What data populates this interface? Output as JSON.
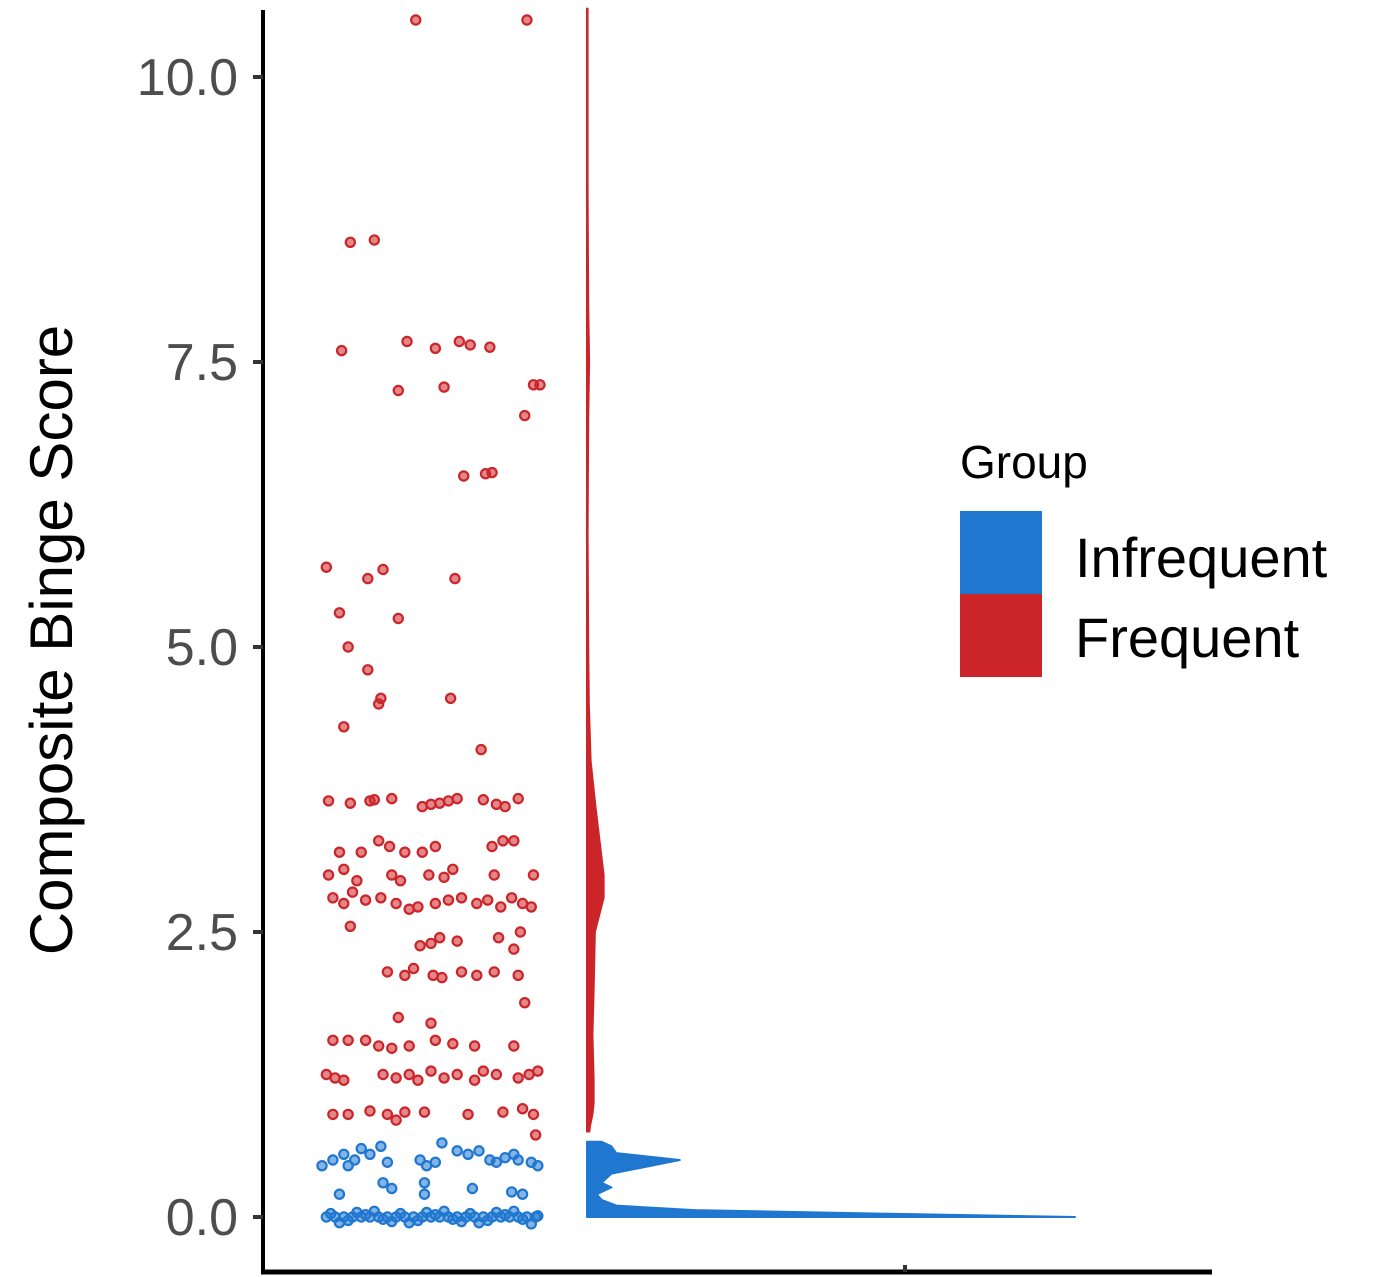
{
  "chart_data": {
    "type": "scatter",
    "subtype": "raincloud (jittered points + half-violin density)",
    "ylabel": "Composite Binge Score",
    "xlabel": "",
    "ylim": [
      -0.4,
      10.6
    ],
    "yticks": [
      0.0,
      2.5,
      5.0,
      7.5,
      10.0
    ],
    "ytick_labels": [
      "0.0",
      "2.5",
      "5.0",
      "7.5",
      "10.0"
    ],
    "grid": false,
    "legend": {
      "title": "Group",
      "position": "right",
      "entries": [
        {
          "label": "Infrequent",
          "color": "#1f77d0"
        },
        {
          "label": "Frequent",
          "color": "#cc2529"
        }
      ]
    },
    "series": [
      {
        "name": "Infrequent",
        "color": "#1f77d0",
        "points": [
          [
            0.02,
            0.0
          ],
          [
            0.06,
            0.0
          ],
          [
            0.1,
            0.0
          ],
          [
            0.14,
            0.0
          ],
          [
            0.18,
            0.0
          ],
          [
            0.22,
            0.0
          ],
          [
            0.26,
            0.0
          ],
          [
            0.3,
            0.0
          ],
          [
            0.34,
            0.0
          ],
          [
            0.38,
            0.0
          ],
          [
            0.42,
            0.0
          ],
          [
            0.46,
            0.0
          ],
          [
            0.5,
            0.0
          ],
          [
            0.54,
            0.0
          ],
          [
            0.58,
            0.0
          ],
          [
            0.62,
            0.0
          ],
          [
            0.66,
            0.0
          ],
          [
            0.7,
            0.0
          ],
          [
            0.74,
            0.0
          ],
          [
            0.78,
            0.0
          ],
          [
            0.82,
            0.0
          ],
          [
            0.86,
            0.0
          ],
          [
            0.9,
            0.0
          ],
          [
            0.94,
            0.0
          ],
          [
            0.98,
            0.0
          ],
          [
            0.04,
            0.03
          ],
          [
            0.12,
            -0.03
          ],
          [
            0.2,
            0.02
          ],
          [
            0.28,
            -0.02
          ],
          [
            0.36,
            0.03
          ],
          [
            0.44,
            -0.03
          ],
          [
            0.52,
            0.02
          ],
          [
            0.6,
            -0.02
          ],
          [
            0.68,
            0.03
          ],
          [
            0.76,
            -0.03
          ],
          [
            0.84,
            0.02
          ],
          [
            0.92,
            -0.02
          ],
          [
            0.08,
            -0.05
          ],
          [
            0.24,
            0.05
          ],
          [
            0.4,
            -0.05
          ],
          [
            0.56,
            0.05
          ],
          [
            0.72,
            -0.05
          ],
          [
            0.88,
            0.05
          ],
          [
            0.96,
            -0.06
          ],
          [
            0.16,
            0.04
          ],
          [
            0.32,
            -0.04
          ],
          [
            0.48,
            0.04
          ],
          [
            0.64,
            -0.04
          ],
          [
            0.8,
            0.04
          ],
          [
            0.99,
            0.01
          ],
          [
            0.0,
            0.45
          ],
          [
            0.05,
            0.5
          ],
          [
            0.1,
            0.55
          ],
          [
            0.12,
            0.45
          ],
          [
            0.15,
            0.5
          ],
          [
            0.18,
            0.6
          ],
          [
            0.22,
            0.55
          ],
          [
            0.27,
            0.62
          ],
          [
            0.3,
            0.48
          ],
          [
            0.45,
            0.5
          ],
          [
            0.48,
            0.45
          ],
          [
            0.52,
            0.48
          ],
          [
            0.55,
            0.65
          ],
          [
            0.62,
            0.58
          ],
          [
            0.67,
            0.55
          ],
          [
            0.72,
            0.58
          ],
          [
            0.77,
            0.5
          ],
          [
            0.8,
            0.48
          ],
          [
            0.84,
            0.52
          ],
          [
            0.88,
            0.55
          ],
          [
            0.9,
            0.5
          ],
          [
            0.96,
            0.48
          ],
          [
            0.99,
            0.45
          ],
          [
            0.08,
            0.2
          ],
          [
            0.28,
            0.3
          ],
          [
            0.32,
            0.25
          ],
          [
            0.47,
            0.3
          ],
          [
            0.47,
            0.2
          ],
          [
            0.69,
            0.25
          ],
          [
            0.87,
            0.22
          ],
          [
            0.92,
            0.2
          ]
        ]
      },
      {
        "name": "Frequent",
        "color": "#cc2529",
        "points": [
          [
            0.43,
            10.5
          ],
          [
            0.94,
            10.5
          ],
          [
            0.13,
            8.55
          ],
          [
            0.24,
            8.57
          ],
          [
            0.09,
            7.6
          ],
          [
            0.35,
            7.25
          ],
          [
            0.39,
            7.68
          ],
          [
            0.52,
            7.62
          ],
          [
            0.56,
            7.28
          ],
          [
            0.63,
            7.68
          ],
          [
            0.68,
            7.65
          ],
          [
            0.77,
            7.63
          ],
          [
            0.93,
            7.03
          ],
          [
            0.97,
            7.3
          ],
          [
            1.0,
            7.3
          ],
          [
            0.65,
            6.5
          ],
          [
            0.75,
            6.52
          ],
          [
            0.78,
            6.53
          ],
          [
            0.02,
            5.7
          ],
          [
            0.21,
            5.6
          ],
          [
            0.28,
            5.68
          ],
          [
            0.35,
            5.25
          ],
          [
            0.61,
            5.6
          ],
          [
            0.08,
            5.3
          ],
          [
            0.12,
            5.0
          ],
          [
            0.21,
            4.8
          ],
          [
            0.26,
            4.5
          ],
          [
            0.27,
            4.55
          ],
          [
            0.59,
            4.55
          ],
          [
            0.1,
            4.3
          ],
          [
            0.73,
            4.1
          ],
          [
            0.03,
            3.65
          ],
          [
            0.13,
            3.63
          ],
          [
            0.22,
            3.65
          ],
          [
            0.24,
            3.66
          ],
          [
            0.32,
            3.67
          ],
          [
            0.46,
            3.6
          ],
          [
            0.5,
            3.62
          ],
          [
            0.54,
            3.63
          ],
          [
            0.58,
            3.65
          ],
          [
            0.62,
            3.67
          ],
          [
            0.74,
            3.66
          ],
          [
            0.8,
            3.62
          ],
          [
            0.84,
            3.6
          ],
          [
            0.9,
            3.67
          ],
          [
            0.08,
            3.2
          ],
          [
            0.18,
            3.2
          ],
          [
            0.26,
            3.3
          ],
          [
            0.31,
            3.25
          ],
          [
            0.38,
            3.2
          ],
          [
            0.46,
            3.2
          ],
          [
            0.52,
            3.25
          ],
          [
            0.78,
            3.25
          ],
          [
            0.83,
            3.3
          ],
          [
            0.88,
            3.3
          ],
          [
            0.03,
            3.0
          ],
          [
            0.1,
            3.05
          ],
          [
            0.16,
            2.95
          ],
          [
            0.32,
            3.0
          ],
          [
            0.36,
            2.95
          ],
          [
            0.49,
            3.0
          ],
          [
            0.56,
            2.98
          ],
          [
            0.6,
            3.05
          ],
          [
            0.79,
            3.0
          ],
          [
            0.97,
            3.0
          ],
          [
            0.05,
            2.8
          ],
          [
            0.1,
            2.75
          ],
          [
            0.14,
            2.85
          ],
          [
            0.2,
            2.78
          ],
          [
            0.27,
            2.8
          ],
          [
            0.34,
            2.75
          ],
          [
            0.4,
            2.7
          ],
          [
            0.44,
            2.72
          ],
          [
            0.52,
            2.75
          ],
          [
            0.58,
            2.78
          ],
          [
            0.64,
            2.8
          ],
          [
            0.71,
            2.75
          ],
          [
            0.76,
            2.78
          ],
          [
            0.82,
            2.72
          ],
          [
            0.87,
            2.8
          ],
          [
            0.92,
            2.75
          ],
          [
            0.96,
            2.72
          ],
          [
            0.13,
            2.55
          ],
          [
            0.45,
            2.38
          ],
          [
            0.5,
            2.4
          ],
          [
            0.54,
            2.45
          ],
          [
            0.62,
            2.42
          ],
          [
            0.81,
            2.45
          ],
          [
            0.91,
            2.5
          ],
          [
            0.88,
            2.35
          ],
          [
            0.3,
            2.15
          ],
          [
            0.38,
            2.12
          ],
          [
            0.42,
            2.18
          ],
          [
            0.51,
            2.12
          ],
          [
            0.55,
            2.1
          ],
          [
            0.64,
            2.15
          ],
          [
            0.71,
            2.12
          ],
          [
            0.79,
            2.15
          ],
          [
            0.9,
            2.12
          ],
          [
            0.93,
            1.88
          ],
          [
            0.35,
            1.75
          ],
          [
            0.05,
            1.55
          ],
          [
            0.12,
            1.55
          ],
          [
            0.2,
            1.55
          ],
          [
            0.26,
            1.5
          ],
          [
            0.32,
            1.48
          ],
          [
            0.4,
            1.5
          ],
          [
            0.52,
            1.55
          ],
          [
            0.6,
            1.52
          ],
          [
            0.7,
            1.5
          ],
          [
            0.88,
            1.5
          ],
          [
            0.5,
            1.7
          ],
          [
            0.02,
            1.25
          ],
          [
            0.06,
            1.22
          ],
          [
            0.1,
            1.2
          ],
          [
            0.28,
            1.25
          ],
          [
            0.34,
            1.22
          ],
          [
            0.4,
            1.25
          ],
          [
            0.44,
            1.2
          ],
          [
            0.5,
            1.28
          ],
          [
            0.56,
            1.22
          ],
          [
            0.62,
            1.25
          ],
          [
            0.7,
            1.2
          ],
          [
            0.74,
            1.28
          ],
          [
            0.8,
            1.25
          ],
          [
            0.9,
            1.22
          ],
          [
            0.95,
            1.25
          ],
          [
            0.99,
            1.28
          ],
          [
            0.05,
            0.9
          ],
          [
            0.12,
            0.9
          ],
          [
            0.22,
            0.93
          ],
          [
            0.3,
            0.9
          ],
          [
            0.34,
            0.85
          ],
          [
            0.38,
            0.92
          ],
          [
            0.47,
            0.92
          ],
          [
            0.67,
            0.9
          ],
          [
            0.83,
            0.92
          ],
          [
            0.92,
            0.95
          ],
          [
            0.97,
            0.9
          ],
          [
            0.98,
            0.72
          ]
        ]
      }
    ],
    "densities": [
      {
        "name": "Infrequent",
        "color": "#1f77d0",
        "profile": [
          [
            0.0,
            1.0
          ],
          [
            0.03,
            0.6
          ],
          [
            0.06,
            0.22
          ],
          [
            0.1,
            0.06
          ],
          [
            0.15,
            0.03
          ],
          [
            0.2,
            0.02
          ],
          [
            0.26,
            0.05
          ],
          [
            0.3,
            0.03
          ],
          [
            0.38,
            0.05
          ],
          [
            0.44,
            0.12
          ],
          [
            0.5,
            0.19
          ],
          [
            0.56,
            0.06
          ],
          [
            0.62,
            0.05
          ],
          [
            0.66,
            0.03
          ]
        ]
      },
      {
        "name": "Frequent",
        "color": "#cc2529",
        "profile": [
          [
            0.75,
            0.008
          ],
          [
            0.8,
            0.01
          ],
          [
            0.9,
            0.018
          ],
          [
            1.0,
            0.022
          ],
          [
            1.2,
            0.022
          ],
          [
            1.4,
            0.02
          ],
          [
            1.6,
            0.018
          ],
          [
            2.0,
            0.022
          ],
          [
            2.5,
            0.026
          ],
          [
            2.8,
            0.055
          ],
          [
            3.0,
            0.055
          ],
          [
            3.2,
            0.046
          ],
          [
            3.6,
            0.028
          ],
          [
            4.0,
            0.012
          ],
          [
            4.5,
            0.006
          ],
          [
            5.0,
            0.004
          ],
          [
            6.0,
            0.002
          ],
          [
            7.0,
            0.004
          ],
          [
            7.5,
            0.007
          ],
          [
            8.0,
            0.004
          ],
          [
            9.0,
            0.002
          ],
          [
            10.0,
            0.002
          ],
          [
            10.6,
            0.002
          ]
        ]
      }
    ]
  }
}
